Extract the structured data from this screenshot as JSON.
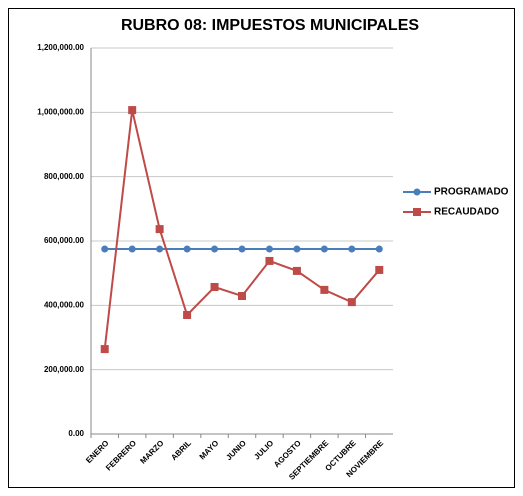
{
  "chart_data": {
    "type": "line",
    "title": "RUBRO 08: IMPUESTOS MUNICIPALES",
    "categories": [
      "ENERO",
      "FEBRERO",
      "MARZO",
      "ABRIL",
      "MAYO",
      "JUNIO",
      "JULIO",
      "AGOSTO",
      "SEPTIEMBRE",
      "OCTUBRE",
      "NOVIEMBRE"
    ],
    "series": [
      {
        "name": "PROGRAMADO",
        "color": "#4a7ebb",
        "values": [
          575000,
          575000,
          575000,
          575000,
          575000,
          575000,
          575000,
          575000,
          575000,
          575000,
          575000
        ]
      },
      {
        "name": "RECAUDADO",
        "color": "#be4b48",
        "values": [
          264000,
          1007000,
          637000,
          370000,
          457000,
          429000,
          538000,
          507000,
          448000,
          410000,
          510000
        ]
      }
    ],
    "ylim": [
      0,
      1200000
    ],
    "yticks": [
      {
        "value": 0,
        "label": "0.00"
      },
      {
        "value": 200000,
        "label": "200,000.00"
      },
      {
        "value": 400000,
        "label": "400,000.00"
      },
      {
        "value": 600000,
        "label": "600,000.00"
      },
      {
        "value": 800000,
        "label": "800,000.00"
      },
      {
        "value": 1000000,
        "label": "1,000,000.00"
      },
      {
        "value": 1200000,
        "label": "1,200,000.00"
      }
    ],
    "grid": true,
    "legend": "right"
  }
}
